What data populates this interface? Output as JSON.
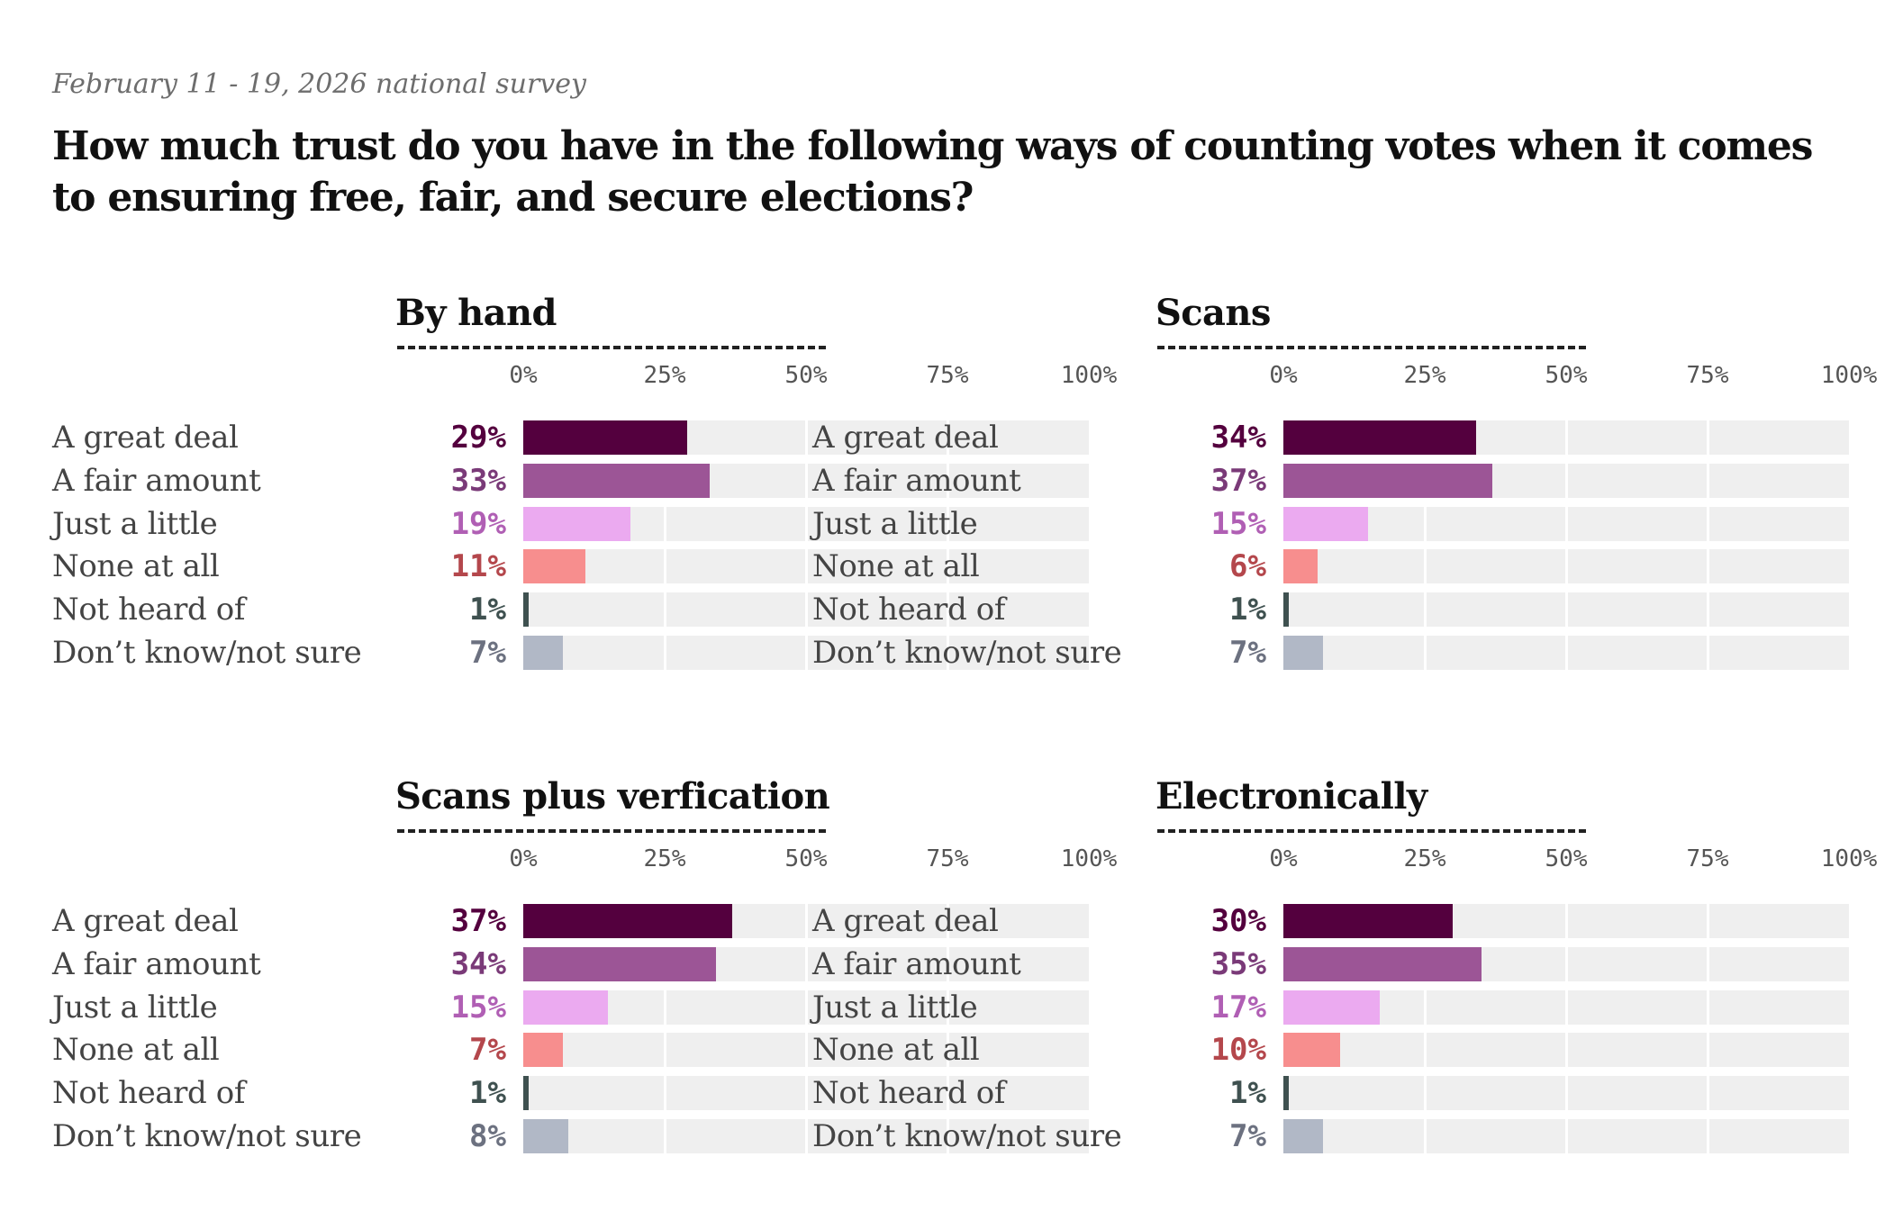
{
  "header": {
    "subtitle": "February 11 - 19, 2026 national survey",
    "title": "How much trust do you have in the following ways of counting votes when it comes to ensuring free, fair, and secure elections?"
  },
  "categories": [
    "A great deal",
    "A fair amount",
    "Just a little",
    "None at all",
    "Not heard of",
    "Don’t know/not sure"
  ],
  "colors": {
    "bars": [
      "#54003e",
      "#9c5596",
      "#ebaaf0",
      "#f78e8e",
      "#3f5150",
      "#b1b8c6"
    ],
    "labels": [
      "#54003e",
      "#7a3a78",
      "#b05fb4",
      "#b4474c",
      "#3f5150",
      "#6c7180"
    ]
  },
  "chart_data": [
    {
      "type": "bar",
      "title": "By hand",
      "categories": [
        "A great deal",
        "A fair amount",
        "Just a little",
        "None at all",
        "Not heard of",
        "Don’t know/not sure"
      ],
      "values": [
        29,
        33,
        19,
        11,
        1,
        7
      ],
      "value_labels": [
        "29%",
        "33%",
        "19%",
        "11%",
        "1%",
        "7%"
      ],
      "ticks": [
        "0%",
        "25%",
        "50%",
        "75%",
        "100%"
      ],
      "xlim": [
        0,
        100
      ]
    },
    {
      "type": "bar",
      "title": "Scans",
      "categories": [
        "A great deal",
        "A fair amount",
        "Just a little",
        "None at all",
        "Not heard of",
        "Don’t know/not sure"
      ],
      "values": [
        34,
        37,
        15,
        6,
        1,
        7
      ],
      "value_labels": [
        "34%",
        "37%",
        "15%",
        "6%",
        "1%",
        "7%"
      ],
      "ticks": [
        "0%",
        "25%",
        "50%",
        "75%",
        "100%"
      ],
      "xlim": [
        0,
        100
      ]
    },
    {
      "type": "bar",
      "title": "Scans plus verfication",
      "categories": [
        "A great deal",
        "A fair amount",
        "Just a little",
        "None at all",
        "Not heard of",
        "Don’t know/not sure"
      ],
      "values": [
        37,
        34,
        15,
        7,
        1,
        8
      ],
      "value_labels": [
        "37%",
        "34%",
        "15%",
        "7%",
        "1%",
        "8%"
      ],
      "ticks": [
        "0%",
        "25%",
        "50%",
        "75%",
        "100%"
      ],
      "xlim": [
        0,
        100
      ]
    },
    {
      "type": "bar",
      "title": "Electronically",
      "categories": [
        "A great deal",
        "A fair amount",
        "Just a little",
        "None at all",
        "Not heard of",
        "Don’t know/not sure"
      ],
      "values": [
        30,
        35,
        17,
        10,
        1,
        7
      ],
      "value_labels": [
        "30%",
        "35%",
        "17%",
        "10%",
        "1%",
        "7%"
      ],
      "ticks": [
        "0%",
        "25%",
        "50%",
        "75%",
        "100%"
      ],
      "xlim": [
        0,
        100
      ]
    }
  ]
}
